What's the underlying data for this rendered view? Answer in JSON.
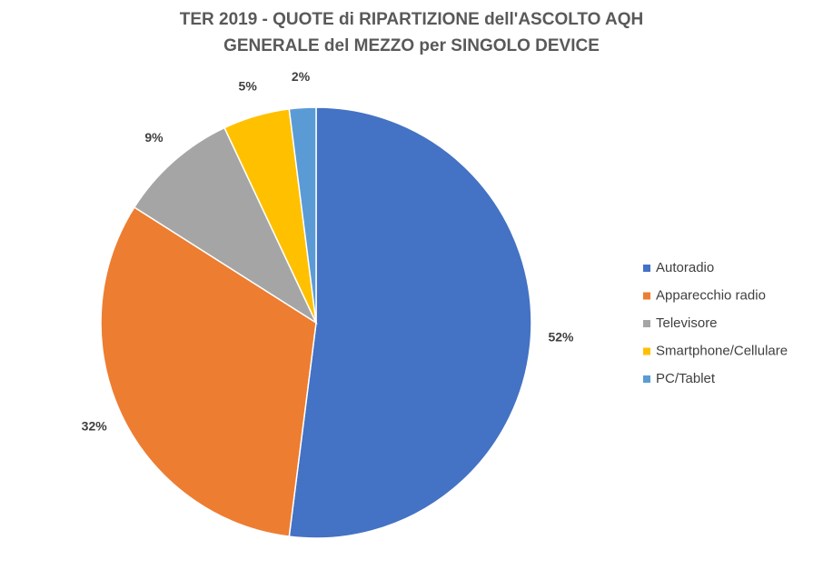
{
  "chart_data": {
    "type": "pie",
    "title": [
      "TER 2019 - QUOTE di RIPARTIZIONE dell'ASCOLTO AQH",
      "GENERALE del MEZZO per SINGOLO DEVICE"
    ],
    "categories": [
      "Autoradio",
      "Apparecchio radio",
      "Televisore",
      "Smartphone/Cellulare",
      "PC/Tablet"
    ],
    "values": [
      52,
      32,
      9,
      5,
      2
    ],
    "value_labels": [
      "52%",
      "32%",
      "9%",
      "5%",
      "2%"
    ],
    "colors": [
      "#4472c4",
      "#ed7d31",
      "#a5a5a5",
      "#ffc000",
      "#5b9bd5"
    ],
    "legend": "right"
  }
}
